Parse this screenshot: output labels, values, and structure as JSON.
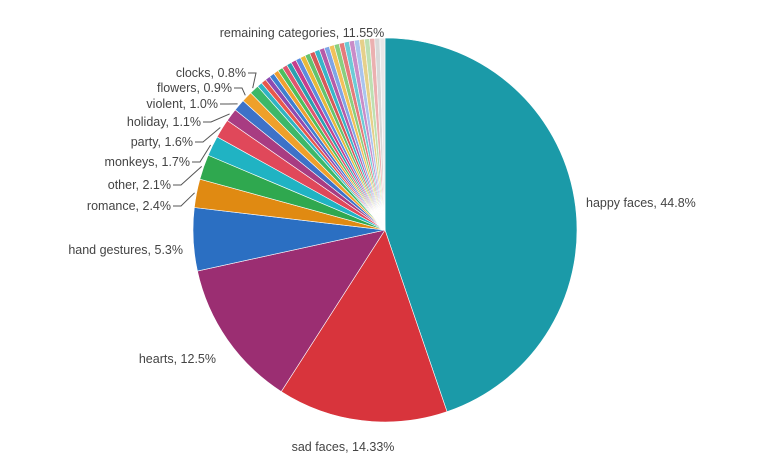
{
  "chart_data": {
    "type": "pie",
    "slices": [
      {
        "label": "happy faces, 44.8%",
        "value": 44.8,
        "color": "#1B9AA8"
      },
      {
        "label": "sad faces, 14.33%",
        "value": 14.33,
        "color": "#D8343C"
      },
      {
        "label": "hearts, 12.5%",
        "value": 12.5,
        "color": "#9B2E72"
      },
      {
        "label": "hand gestures, 5.3%",
        "value": 5.3,
        "color": "#2B6FC2"
      },
      {
        "label": "romance, 2.4%",
        "value": 2.4,
        "color": "#E08A12"
      },
      {
        "label": "other, 2.1%",
        "value": 2.1,
        "color": "#2FA84F"
      },
      {
        "label": "monkeys, 1.7%",
        "value": 1.7,
        "color": "#20B3C3"
      },
      {
        "label": "party, 1.6%",
        "value": 1.6,
        "color": "#E0485A"
      },
      {
        "label": "holiday, 1.1%",
        "value": 1.1,
        "color": "#A83C82"
      },
      {
        "label": "violent, 1.0%",
        "value": 1.0,
        "color": "#3D72C8"
      },
      {
        "label": "flowers, 0.9%",
        "value": 0.9,
        "color": "#EFA02A"
      },
      {
        "label": "clocks, 0.8%",
        "value": 0.8,
        "color": "#3DB868"
      },
      {
        "label": "remaining categories, 11.55%",
        "value": 11.55,
        "color": "#cccccc"
      }
    ],
    "remaining_band_colors": [
      "#2FB4C4",
      "#E8584C",
      "#8E4AB0",
      "#3F7FD0",
      "#F0A030",
      "#4DBF5E",
      "#E0566E",
      "#2AA0B0",
      "#C63E8C",
      "#5C8CE0",
      "#E9B93A",
      "#63C36E",
      "#D75858",
      "#37B6C8",
      "#B65BA8",
      "#7FA5E6",
      "#F2C15A",
      "#8ACF7E",
      "#E57B7B",
      "#6CCBD6",
      "#C98CC8",
      "#A9C4EE",
      "#E6D08A",
      "#BDE0B2",
      "#EBB0B0",
      "#D8D8D8",
      "#E8E8E8"
    ]
  }
}
